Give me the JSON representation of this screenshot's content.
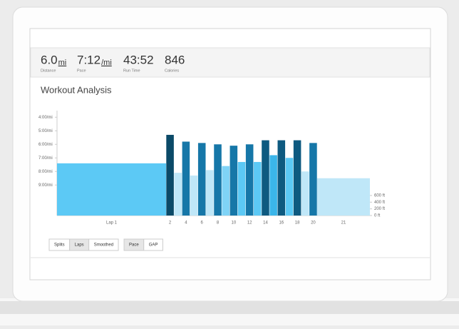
{
  "stats": [
    {
      "value": "6.0",
      "unit": "mi",
      "label": "Distance"
    },
    {
      "value": "7:12",
      "unit": "/mi",
      "label": "Pace"
    },
    {
      "value": "43:52",
      "label": "Run Time"
    },
    {
      "value": "846",
      "label": "Calories"
    }
  ],
  "chart_data": {
    "type": "bar",
    "title": "Workout Analysis",
    "categories": [
      "Lap 1",
      "2",
      null,
      "4",
      null,
      "6",
      null,
      "8",
      null,
      "10",
      null,
      "12",
      null,
      "14",
      null,
      "16",
      null,
      "18",
      null,
      "20",
      "21"
    ],
    "values": [
      7.4,
      5.3,
      8.1,
      5.8,
      8.3,
      5.9,
      7.9,
      6.0,
      7.6,
      6.1,
      7.3,
      6.0,
      7.3,
      5.7,
      6.8,
      5.7,
      7.0,
      5.7,
      8.0,
      5.9,
      8.5
    ],
    "colors": [
      "#5cc9f5",
      "#0b4a68",
      "#bfe7f8",
      "#1677a8",
      "#bfe7f8",
      "#1677a8",
      "#bfe7f8",
      "#1677a8",
      "#7fd3f6",
      "#1677a8",
      "#5cc9f5",
      "#1677a8",
      "#5cc9f5",
      "#0e5a80",
      "#3bb6ea",
      "#0e5a80",
      "#5cc9f5",
      "#0e5a80",
      "#bfe7f8",
      "#1677a8",
      "#bfe7f8"
    ],
    "ylim": [
      11.25,
      3.25
    ],
    "yticks": [
      {
        "value": 4,
        "label": "4:00/mi"
      },
      {
        "value": 5,
        "label": "5:00/mi"
      },
      {
        "value": 6,
        "label": "6:00/mi"
      },
      {
        "value": 7,
        "label": "7:00/mi"
      },
      {
        "value": 8,
        "label": "8:00/mi"
      },
      {
        "value": 9,
        "label": "9:00/mi"
      }
    ],
    "y2lim": [
      0,
      3250
    ],
    "y2ticks": [
      {
        "value": 0,
        "label": "0 ft"
      },
      {
        "value": 200,
        "label": "200 ft"
      },
      {
        "value": 400,
        "label": "400 ft"
      },
      {
        "value": 600,
        "label": "600 ft"
      }
    ]
  },
  "buttons": [
    [
      "Splits",
      "Laps",
      "Smoothed"
    ],
    [
      "Pace",
      "GAP"
    ]
  ]
}
